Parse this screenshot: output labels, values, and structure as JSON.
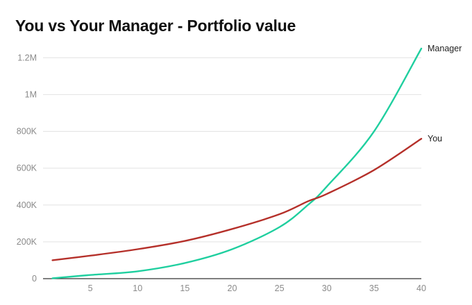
{
  "chart_data": {
    "type": "line",
    "title": "You vs Your Manager - Portfolio value",
    "xlabel": "",
    "ylabel": "",
    "xlim": [
      0,
      40
    ],
    "ylim": [
      0,
      1250000
    ],
    "x_ticks": [
      5,
      10,
      15,
      20,
      25,
      30,
      35,
      40
    ],
    "y_ticks": [
      0,
      200000,
      400000,
      600000,
      800000,
      1000000,
      1200000
    ],
    "y_tick_labels": [
      "0",
      "200K",
      "400K",
      "600K",
      "800K",
      "1M",
      "1.2M"
    ],
    "grid": "horizontal",
    "legend": "end-of-line labels",
    "series": [
      {
        "name": "Manager",
        "color": "#1fcf9f",
        "x": [
          1,
          5,
          10,
          15,
          20,
          25,
          28,
          30,
          35,
          40
        ],
        "values": [
          2000,
          20000,
          40000,
          85000,
          160000,
          280000,
          400000,
          500000,
          800000,
          1250000
        ]
      },
      {
        "name": "You",
        "color": "#b5302a",
        "x": [
          1,
          5,
          10,
          15,
          20,
          25,
          28,
          30,
          35,
          40
        ],
        "values": [
          100000,
          125000,
          160000,
          205000,
          270000,
          350000,
          420000,
          460000,
          590000,
          760000
        ]
      }
    ]
  }
}
